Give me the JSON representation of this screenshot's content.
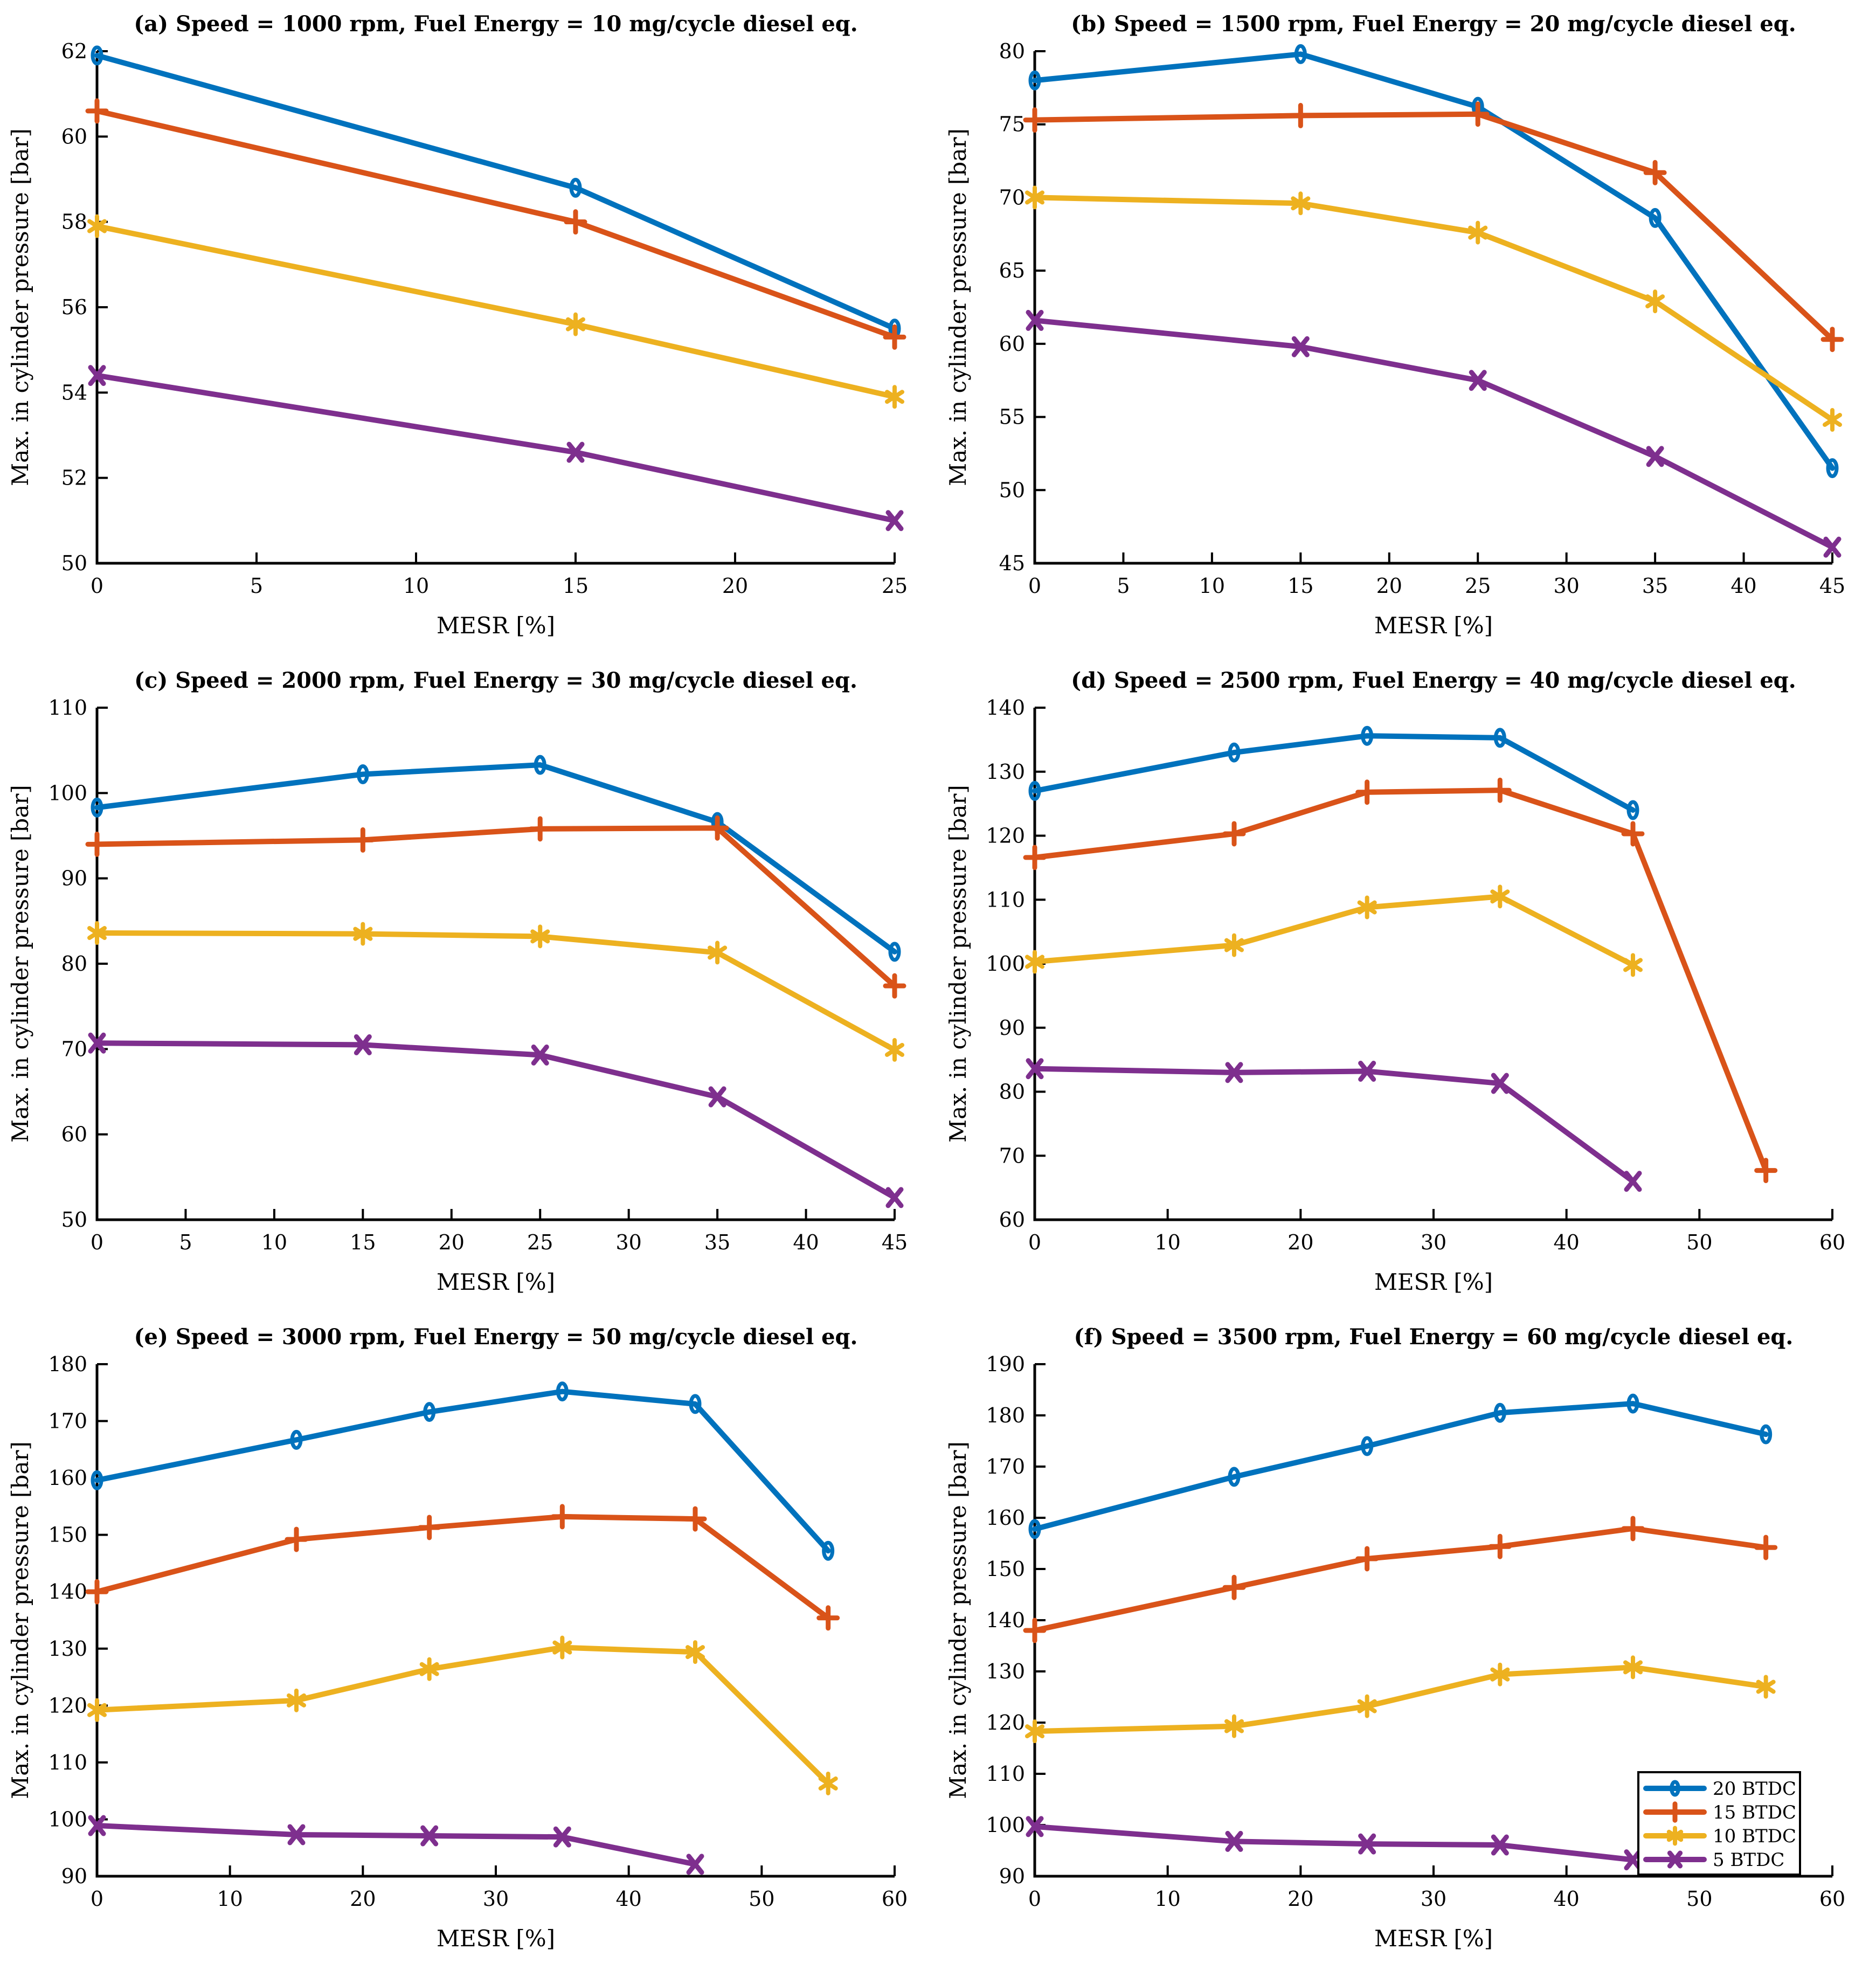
{
  "figure": {
    "xlabel": "MESR [%]",
    "ylabel": "Max. in cylinder pressure [bar]",
    "background": "#ffffff",
    "axis_color": "#000000"
  },
  "series_style": [
    {
      "name": "20 BTDC",
      "color": "#0072BD",
      "marker": "circle"
    },
    {
      "name": "15 BTDC",
      "color": "#D95319",
      "marker": "plus"
    },
    {
      "name": "10 BTDC",
      "color": "#EDB120",
      "marker": "asterisk"
    },
    {
      "name": "5 BTDC",
      "color": "#7E2F8E",
      "marker": "x"
    }
  ],
  "legend": {
    "panel": "f",
    "position": "right-bottom-inside",
    "entries": [
      "20 BTDC",
      "15 BTDC",
      "10 BTDC",
      "5 BTDC"
    ]
  },
  "chart_data": [
    {
      "id": "a",
      "type": "line",
      "title": "(a) Speed = 1000 rpm, Fuel Energy = 10 mg/cycle diesel eq.",
      "xlabel": "MESR [%]",
      "ylabel": "Max. in cylinder pressure [bar]",
      "xlim": [
        0,
        25
      ],
      "ylim": [
        50,
        62
      ],
      "xticks": [
        0,
        5,
        10,
        15,
        20,
        25
      ],
      "yticks": [
        50,
        52,
        54,
        56,
        58,
        60,
        62
      ],
      "grid": false,
      "series": [
        {
          "name": "20 BTDC",
          "x": [
            0,
            15,
            25
          ],
          "y": [
            61.9,
            58.8,
            55.5
          ]
        },
        {
          "name": "15 BTDC",
          "x": [
            0,
            15,
            25
          ],
          "y": [
            60.6,
            58.0,
            55.3
          ]
        },
        {
          "name": "10 BTDC",
          "x": [
            0,
            15,
            25
          ],
          "y": [
            57.9,
            55.6,
            53.9
          ]
        },
        {
          "name": "5 BTDC",
          "x": [
            0,
            15,
            25
          ],
          "y": [
            54.4,
            52.6,
            51.0
          ]
        }
      ]
    },
    {
      "id": "b",
      "type": "line",
      "title": "(b) Speed = 1500 rpm, Fuel Energy = 20 mg/cycle diesel eq.",
      "xlabel": "MESR [%]",
      "ylabel": "Max. in cylinder pressure [bar]",
      "xlim": [
        0,
        45
      ],
      "ylim": [
        45,
        80
      ],
      "xticks": [
        0,
        5,
        10,
        15,
        20,
        25,
        30,
        35,
        40,
        45
      ],
      "yticks": [
        45,
        50,
        55,
        60,
        65,
        70,
        75,
        80
      ],
      "grid": false,
      "series": [
        {
          "name": "20 BTDC",
          "x": [
            0,
            15,
            25,
            35,
            45
          ],
          "y": [
            78.0,
            79.8,
            76.2,
            68.6,
            51.5
          ]
        },
        {
          "name": "15 BTDC",
          "x": [
            0,
            15,
            25,
            35,
            45
          ],
          "y": [
            75.3,
            75.6,
            75.7,
            71.7,
            60.3
          ]
        },
        {
          "name": "10 BTDC",
          "x": [
            0,
            15,
            25,
            35,
            45
          ],
          "y": [
            70.0,
            69.6,
            67.6,
            62.9,
            54.8
          ]
        },
        {
          "name": "5 BTDC",
          "x": [
            0,
            15,
            25,
            35,
            45
          ],
          "y": [
            61.6,
            59.8,
            57.5,
            52.3,
            46.1
          ]
        }
      ]
    },
    {
      "id": "c",
      "type": "line",
      "title": "(c) Speed = 2000 rpm, Fuel Energy = 30 mg/cycle diesel eq.",
      "xlabel": "MESR [%]",
      "ylabel": "Max. in cylinder pressure [bar]",
      "xlim": [
        0,
        45
      ],
      "ylim": [
        50,
        110
      ],
      "xticks": [
        0,
        5,
        10,
        15,
        20,
        25,
        30,
        35,
        40,
        45
      ],
      "yticks": [
        50,
        60,
        70,
        80,
        90,
        100,
        110
      ],
      "grid": false,
      "series": [
        {
          "name": "20 BTDC",
          "x": [
            0,
            15,
            25,
            35,
            45
          ],
          "y": [
            98.3,
            102.2,
            103.3,
            96.6,
            81.4
          ]
        },
        {
          "name": "15 BTDC",
          "x": [
            0,
            15,
            25,
            35,
            45
          ],
          "y": [
            94.0,
            94.5,
            95.8,
            95.9,
            77.4
          ]
        },
        {
          "name": "10 BTDC",
          "x": [
            0,
            15,
            25,
            35,
            45
          ],
          "y": [
            83.6,
            83.5,
            83.2,
            81.3,
            69.9
          ]
        },
        {
          "name": "5 BTDC",
          "x": [
            0,
            15,
            25,
            35,
            45
          ],
          "y": [
            70.7,
            70.5,
            69.3,
            64.4,
            52.6
          ]
        }
      ]
    },
    {
      "id": "d",
      "type": "line",
      "title": "(d) Speed = 2500 rpm, Fuel Energy = 40 mg/cycle diesel eq.",
      "xlabel": "MESR [%]",
      "ylabel": "Max. in cylinder pressure [bar]",
      "xlim": [
        0,
        60
      ],
      "ylim": [
        60,
        140
      ],
      "xticks": [
        0,
        10,
        20,
        30,
        40,
        50,
        60
      ],
      "yticks": [
        60,
        70,
        80,
        90,
        100,
        110,
        120,
        130,
        140
      ],
      "grid": false,
      "series": [
        {
          "name": "20 BTDC",
          "x": [
            0,
            15,
            25,
            35,
            45
          ],
          "y": [
            127.0,
            133.0,
            135.6,
            135.3,
            124.0
          ]
        },
        {
          "name": "15 BTDC",
          "x": [
            0,
            15,
            25,
            35,
            45,
            55
          ],
          "y": [
            116.6,
            120.3,
            126.8,
            127.1,
            120.3,
            67.7
          ]
        },
        {
          "name": "10 BTDC",
          "x": [
            0,
            15,
            25,
            35,
            45
          ],
          "y": [
            100.3,
            102.9,
            108.8,
            110.5,
            99.8
          ]
        },
        {
          "name": "5 BTDC",
          "x": [
            0,
            15,
            25,
            35,
            45
          ],
          "y": [
            83.6,
            83.0,
            83.2,
            81.3,
            66.0
          ]
        }
      ]
    },
    {
      "id": "e",
      "type": "line",
      "title": "(e) Speed = 3000 rpm, Fuel Energy = 50 mg/cycle diesel eq.",
      "xlabel": "MESR [%]",
      "ylabel": "Max. in cylinder pressure [bar]",
      "xlim": [
        0,
        60
      ],
      "ylim": [
        90,
        180
      ],
      "xticks": [
        0,
        10,
        20,
        30,
        40,
        50,
        60
      ],
      "yticks": [
        90,
        100,
        110,
        120,
        130,
        140,
        150,
        160,
        170,
        180
      ],
      "grid": false,
      "series": [
        {
          "name": "20 BTDC",
          "x": [
            0,
            15,
            25,
            35,
            45,
            55
          ],
          "y": [
            159.6,
            166.7,
            171.6,
            175.2,
            173.0,
            147.2
          ]
        },
        {
          "name": "15 BTDC",
          "x": [
            0,
            15,
            25,
            35,
            45,
            55
          ],
          "y": [
            140.0,
            149.2,
            151.3,
            153.2,
            152.8,
            135.4
          ]
        },
        {
          "name": "10 BTDC",
          "x": [
            0,
            15,
            25,
            35,
            45,
            55
          ],
          "y": [
            119.2,
            120.9,
            126.4,
            130.2,
            129.4,
            106.3
          ]
        },
        {
          "name": "5 BTDC",
          "x": [
            0,
            15,
            25,
            35,
            45
          ],
          "y": [
            98.9,
            97.3,
            97.1,
            96.9,
            92.1
          ]
        }
      ]
    },
    {
      "id": "f",
      "type": "line",
      "title": "(f) Speed = 3500 rpm, Fuel Energy = 60 mg/cycle diesel eq.",
      "xlabel": "MESR [%]",
      "ylabel": "Max. in cylinder pressure [bar]",
      "xlim": [
        0,
        60
      ],
      "ylim": [
        90,
        190
      ],
      "xticks": [
        0,
        10,
        20,
        30,
        40,
        50,
        60
      ],
      "yticks": [
        90,
        100,
        110,
        120,
        130,
        140,
        150,
        160,
        170,
        180,
        190
      ],
      "grid": false,
      "has_legend": true,
      "series": [
        {
          "name": "20 BTDC",
          "x": [
            0,
            15,
            25,
            35,
            45,
            55
          ],
          "y": [
            157.8,
            168.0,
            174.0,
            180.5,
            182.3,
            176.3
          ]
        },
        {
          "name": "15 BTDC",
          "x": [
            0,
            15,
            25,
            35,
            45,
            55
          ],
          "y": [
            138.0,
            146.4,
            152.0,
            154.4,
            157.9,
            154.2
          ]
        },
        {
          "name": "10 BTDC",
          "x": [
            0,
            15,
            25,
            35,
            45,
            55
          ],
          "y": [
            118.3,
            119.3,
            123.2,
            129.4,
            130.8,
            127.0
          ]
        },
        {
          "name": "5 BTDC",
          "x": [
            0,
            15,
            25,
            35,
            45
          ],
          "y": [
            99.7,
            96.8,
            96.3,
            96.1,
            93.2
          ]
        }
      ]
    }
  ]
}
